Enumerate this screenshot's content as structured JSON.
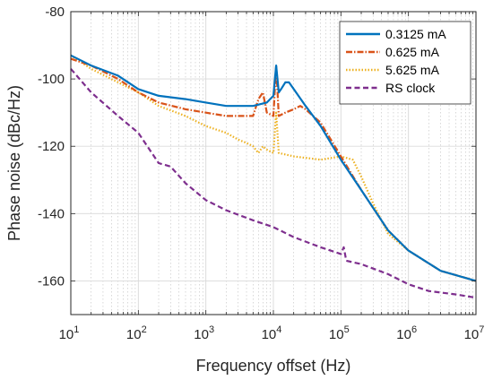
{
  "chart_data": {
    "type": "line",
    "xlabel": "Frequency offset (Hz)",
    "ylabel": "Phase noise (dBc/Hz)",
    "xscale": "log",
    "xlim": [
      10,
      10000000
    ],
    "ylim": [
      -170,
      -80
    ],
    "grid": "on (major and minor on log x)",
    "legend_position": "top-right",
    "x_tick_labels": [
      {
        "base": "10",
        "exp": "1"
      },
      {
        "base": "10",
        "exp": "2"
      },
      {
        "base": "10",
        "exp": "3"
      },
      {
        "base": "10",
        "exp": "4"
      },
      {
        "base": "10",
        "exp": "5"
      },
      {
        "base": "10",
        "exp": "6"
      },
      {
        "base": "10",
        "exp": "7"
      }
    ],
    "y_ticks": [
      -160,
      -140,
      -120,
      -100,
      -80
    ],
    "y_tick_labels": [
      "-160",
      "-140",
      "-120",
      "-100",
      "-80"
    ],
    "series": [
      {
        "name": "0.3125 mA",
        "color": "#0072BD",
        "style": "solid",
        "x": [
          10,
          20,
          50,
          100,
          200,
          500,
          1000,
          2000,
          5000,
          8000,
          10000,
          11000,
          12000,
          13000,
          15000,
          17000,
          20000,
          30000,
          50000,
          100000,
          200000,
          500000,
          1000000,
          3000000,
          10000000
        ],
        "y": [
          -93,
          -96,
          -99,
          -103,
          -105,
          -106,
          -107,
          -108,
          -108,
          -107,
          -105,
          -96,
          -104,
          -103,
          -101,
          -101,
          -103,
          -108,
          -114,
          -124,
          -133,
          -145,
          -151,
          -157,
          -160
        ]
      },
      {
        "name": "0.625 mA",
        "color": "#D95319",
        "style": "dash-dot",
        "x": [
          10,
          20,
          50,
          100,
          200,
          500,
          1000,
          2000,
          5000,
          6000,
          7000,
          8000,
          10000,
          11000,
          12000,
          15000,
          20000,
          25000,
          30000,
          50000,
          100000,
          200000,
          500000,
          1000000,
          3000000,
          10000000
        ],
        "y": [
          -94,
          -96,
          -100,
          -104,
          -107,
          -109,
          -110,
          -111,
          -111,
          -106,
          -104,
          -110,
          -111,
          -96,
          -111,
          -110,
          -109,
          -108,
          -109,
          -113,
          -123,
          -133,
          -145,
          -151,
          -157,
          -160
        ]
      },
      {
        "name": "5.625 mA",
        "color": "#EDB120",
        "style": "dotted",
        "x": [
          10,
          20,
          50,
          100,
          200,
          500,
          1000,
          2000,
          3000,
          4000,
          5000,
          6000,
          7000,
          8000,
          10000,
          11000,
          12000,
          20000,
          50000,
          100000,
          150000,
          200000,
          300000,
          500000,
          1000000,
          3000000,
          10000000
        ],
        "y": [
          -93,
          -97,
          -101,
          -104,
          -108,
          -111,
          -114,
          -116,
          -118,
          -119,
          -120,
          -122,
          -120,
          -121,
          -122,
          -110,
          -122,
          -123,
          -124,
          -123,
          -124,
          -129,
          -137,
          -146,
          -151,
          -157,
          -160
        ]
      },
      {
        "name": "RS clock",
        "color": "#7E2F8E",
        "style": "dashed",
        "x": [
          10,
          20,
          50,
          100,
          200,
          300,
          500,
          1000,
          2000,
          5000,
          10000,
          20000,
          50000,
          100000,
          110000,
          120000,
          200000,
          500000,
          1000000,
          2000000,
          5000000,
          10000000
        ],
        "y": [
          -97,
          -104,
          -111,
          -116,
          -125,
          -126,
          -131,
          -136,
          -139,
          -142,
          -144,
          -147,
          -150,
          -152,
          -150,
          -154,
          -155,
          -158,
          -161,
          -163,
          -164,
          -165
        ]
      }
    ]
  }
}
